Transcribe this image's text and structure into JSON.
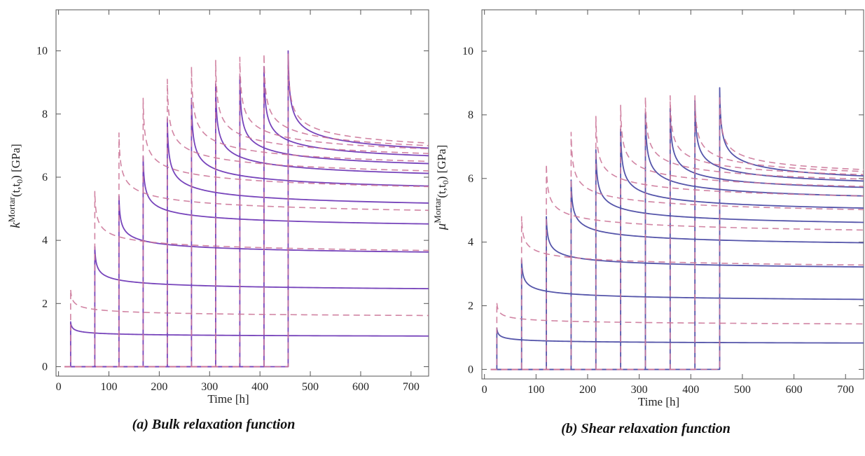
{
  "chart_data": [
    {
      "type": "line",
      "caption": "(a) Bulk relaxation function",
      "xlabel": "Time [h]",
      "ylabel_parts": [
        "k",
        "Mortar",
        "(t,t",
        "0",
        ") [GPa]"
      ],
      "xlim": [
        -5,
        735
      ],
      "ylim": [
        -0.3,
        11.3
      ],
      "xticks": [
        0,
        100,
        200,
        300,
        400,
        500,
        600,
        700
      ],
      "yticks": [
        0,
        2,
        4,
        6,
        8,
        10
      ],
      "grid": false,
      "legend": "none",
      "loading_times": [
        24,
        72,
        120,
        168,
        216,
        264,
        312,
        360,
        408,
        456
      ],
      "x_end": 735,
      "x_start": 12,
      "series": [
        {
          "style": "solid",
          "color": "#7744bb",
          "peaks": [
            1.42,
            3.8,
            5.4,
            6.65,
            7.85,
            8.5,
            8.95,
            9.2,
            9.5,
            10.0
          ],
          "ends": [
            0.97,
            2.47,
            3.63,
            4.52,
            5.18,
            5.72,
            6.12,
            6.43,
            6.68,
            6.92
          ],
          "decay": 0.28
        },
        {
          "style": "dashed",
          "color": "#cc7799",
          "peaks": [
            2.45,
            5.55,
            7.4,
            8.5,
            9.1,
            9.5,
            9.7,
            9.8,
            9.9,
            9.9
          ],
          "ends": [
            1.62,
            3.68,
            4.95,
            5.7,
            6.2,
            6.5,
            6.75,
            6.9,
            7.0,
            7.08
          ],
          "decay": 0.24
        }
      ]
    },
    {
      "type": "line",
      "caption": "(b) Shear relaxation function",
      "xlabel": "Time [h]",
      "ylabel_parts": [
        "μ",
        "Mortar",
        "(t,t",
        "0",
        ") [GPa]"
      ],
      "xlim": [
        -5,
        735
      ],
      "ylim": [
        -0.3,
        11.3
      ],
      "xticks": [
        0,
        100,
        200,
        300,
        400,
        500,
        600,
        700
      ],
      "yticks": [
        0,
        2,
        4,
        6,
        8,
        10
      ],
      "grid": false,
      "legend": "none",
      "loading_times": [
        24,
        72,
        120,
        168,
        216,
        264,
        312,
        360,
        408,
        456
      ],
      "x_end": 735,
      "x_start": 12,
      "series": [
        {
          "style": "solid",
          "color": "#5555aa",
          "peaks": [
            1.3,
            3.45,
            4.8,
            5.95,
            6.9,
            7.55,
            8.05,
            8.2,
            8.45,
            8.85
          ],
          "ends": [
            0.83,
            2.2,
            3.22,
            3.98,
            4.62,
            5.07,
            5.45,
            5.72,
            5.92,
            6.08
          ],
          "decay": 0.28
        },
        {
          "style": "dashed",
          "color": "#cc7799",
          "peaks": [
            2.1,
            4.8,
            6.45,
            7.45,
            7.95,
            8.3,
            8.55,
            8.6,
            8.6,
            8.6
          ],
          "ends": [
            1.43,
            3.28,
            4.38,
            5.02,
            5.45,
            5.75,
            5.98,
            6.12,
            6.22,
            6.28
          ],
          "decay": 0.24
        }
      ]
    }
  ]
}
